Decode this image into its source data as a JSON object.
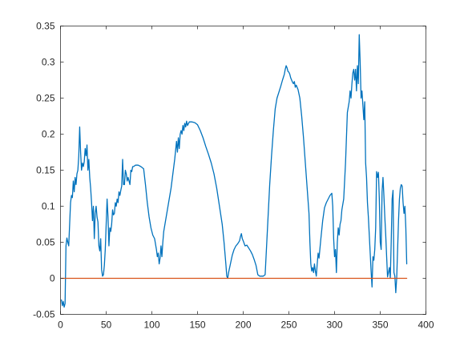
{
  "chart_data": {
    "type": "line",
    "title": "",
    "xlabel": "",
    "ylabel": "",
    "xlim": [
      0,
      400
    ],
    "ylim": [
      -0.05,
      0.35
    ],
    "grid": false,
    "legend": "none",
    "x_ticks": [
      0,
      50,
      100,
      150,
      200,
      250,
      300,
      350,
      400
    ],
    "x_tick_labels": [
      "0",
      "50",
      "100",
      "150",
      "200",
      "250",
      "300",
      "350",
      "400"
    ],
    "y_ticks": [
      -0.05,
      0,
      0.05,
      0.1,
      0.15,
      0.2,
      0.25,
      0.3,
      0.35
    ],
    "y_tick_labels": [
      "-0.05",
      "0",
      "0.05",
      "0.1",
      "0.15",
      "0.2",
      "0.25",
      "0.3",
      "0.35"
    ],
    "series": [
      {
        "color": "#0072BD",
        "points": [
          [
            1,
            -0.03
          ],
          [
            2,
            -0.038
          ],
          [
            3,
            -0.032
          ],
          [
            4,
            -0.04
          ],
          [
            5,
            -0.035
          ],
          [
            6,
            0.045
          ],
          [
            7,
            0.056
          ],
          [
            8,
            0.05
          ],
          [
            9,
            0.045
          ],
          [
            10,
            0.075
          ],
          [
            11,
            0.105
          ],
          [
            12,
            0.115
          ],
          [
            13,
            0.112
          ],
          [
            14,
            0.135
          ],
          [
            15,
            0.12
          ],
          [
            16,
            0.14
          ],
          [
            17,
            0.13
          ],
          [
            18,
            0.145
          ],
          [
            19,
            0.15
          ],
          [
            20,
            0.17
          ],
          [
            21,
            0.21
          ],
          [
            22,
            0.175
          ],
          [
            23,
            0.15
          ],
          [
            24,
            0.16
          ],
          [
            25,
            0.155
          ],
          [
            26,
            0.162
          ],
          [
            27,
            0.18
          ],
          [
            28,
            0.17
          ],
          [
            29,
            0.185
          ],
          [
            30,
            0.15
          ],
          [
            31,
            0.165
          ],
          [
            32,
            0.14
          ],
          [
            33,
            0.125
          ],
          [
            34,
            0.105
          ],
          [
            35,
            0.08
          ],
          [
            36,
            0.1
          ],
          [
            37,
            0.055
          ],
          [
            38,
            0.09
          ],
          [
            39,
            0.1
          ],
          [
            40,
            0.085
          ],
          [
            41,
            0.078
          ],
          [
            42,
            0.045
          ],
          [
            43,
            0.038
          ],
          [
            44,
            0.055
          ],
          [
            45,
            0.012
          ],
          [
            46,
            0.003
          ],
          [
            47,
            0.005
          ],
          [
            48,
            0.018
          ],
          [
            49,
            0.04
          ],
          [
            50,
            0.075
          ],
          [
            51,
            0.11
          ],
          [
            52,
            0.085
          ],
          [
            53,
            0.045
          ],
          [
            54,
            0.07
          ],
          [
            55,
            0.065
          ],
          [
            56,
            0.075
          ],
          [
            57,
            0.095
          ],
          [
            58,
            0.088
          ],
          [
            59,
            0.09
          ],
          [
            60,
            0.105
          ],
          [
            61,
            0.1
          ],
          [
            62,
            0.11
          ],
          [
            63,
            0.105
          ],
          [
            64,
            0.12
          ],
          [
            65,
            0.115
          ],
          [
            66,
            0.122
          ],
          [
            67,
            0.128
          ],
          [
            68,
            0.165
          ],
          [
            69,
            0.13
          ],
          [
            70,
            0.13
          ],
          [
            71,
            0.15
          ],
          [
            72,
            0.145
          ],
          [
            73,
            0.135
          ],
          [
            74,
            0.14
          ],
          [
            75,
            0.135
          ],
          [
            76,
            0.13
          ],
          [
            77,
            0.15
          ],
          [
            78,
            0.148
          ],
          [
            79,
            0.155
          ],
          [
            80,
            0.155
          ],
          [
            82,
            0.157
          ],
          [
            85,
            0.157
          ],
          [
            88,
            0.155
          ],
          [
            91,
            0.152
          ],
          [
            93,
            0.13
          ],
          [
            95,
            0.105
          ],
          [
            97,
            0.085
          ],
          [
            99,
            0.07
          ],
          [
            101,
            0.06
          ],
          [
            103,
            0.055
          ],
          [
            105,
            0.04
          ],
          [
            106,
            0.03
          ],
          [
            107,
            0.035
          ],
          [
            108,
            0.02
          ],
          [
            109,
            0.028
          ],
          [
            110,
            0.045
          ],
          [
            111,
            0.03
          ],
          [
            112,
            0.05
          ],
          [
            113,
            0.065
          ],
          [
            115,
            0.08
          ],
          [
            117,
            0.095
          ],
          [
            119,
            0.11
          ],
          [
            121,
            0.125
          ],
          [
            123,
            0.145
          ],
          [
            125,
            0.165
          ],
          [
            127,
            0.19
          ],
          [
            128,
            0.175
          ],
          [
            129,
            0.195
          ],
          [
            130,
            0.18
          ],
          [
            131,
            0.2
          ],
          [
            132,
            0.205
          ],
          [
            133,
            0.2
          ],
          [
            134,
            0.212
          ],
          [
            135,
            0.205
          ],
          [
            136,
            0.215
          ],
          [
            137,
            0.21
          ],
          [
            138,
            0.218
          ],
          [
            139,
            0.212
          ],
          [
            141,
            0.217
          ],
          [
            144,
            0.217
          ],
          [
            147,
            0.216
          ],
          [
            150,
            0.213
          ],
          [
            153,
            0.205
          ],
          [
            156,
            0.195
          ],
          [
            159,
            0.183
          ],
          [
            162,
            0.172
          ],
          [
            165,
            0.16
          ],
          [
            168,
            0.145
          ],
          [
            171,
            0.125
          ],
          [
            174,
            0.1
          ],
          [
            177,
            0.075
          ],
          [
            179,
            0.05
          ],
          [
            181,
            0.02
          ],
          [
            182,
            0.003
          ],
          [
            183,
            0.0
          ],
          [
            184,
            0.008
          ],
          [
            186,
            0.02
          ],
          [
            188,
            0.032
          ],
          [
            190,
            0.04
          ],
          [
            192,
            0.045
          ],
          [
            194,
            0.048
          ],
          [
            196,
            0.052
          ],
          [
            197,
            0.058
          ],
          [
            198,
            0.062
          ],
          [
            199,
            0.055
          ],
          [
            200,
            0.052
          ],
          [
            202,
            0.045
          ],
          [
            204,
            0.046
          ],
          [
            206,
            0.042
          ],
          [
            208,
            0.038
          ],
          [
            210,
            0.033
          ],
          [
            212,
            0.026
          ],
          [
            214,
            0.018
          ],
          [
            216,
            0.005
          ],
          [
            218,
            0.003
          ],
          [
            220,
            0.003
          ],
          [
            222,
            0.003
          ],
          [
            224,
            0.005
          ],
          [
            225,
            0.03
          ],
          [
            227,
            0.08
          ],
          [
            229,
            0.13
          ],
          [
            231,
            0.17
          ],
          [
            233,
            0.205
          ],
          [
            235,
            0.235
          ],
          [
            237,
            0.25
          ],
          [
            239,
            0.258
          ],
          [
            241,
            0.266
          ],
          [
            243,
            0.275
          ],
          [
            245,
            0.283
          ],
          [
            246,
            0.29
          ],
          [
            247,
            0.295
          ],
          [
            248,
            0.292
          ],
          [
            249,
            0.287
          ],
          [
            250,
            0.286
          ],
          [
            251,
            0.283
          ],
          [
            252,
            0.278
          ],
          [
            253,
            0.275
          ],
          [
            254,
            0.272
          ],
          [
            255,
            0.27
          ],
          [
            256,
            0.273
          ],
          [
            257,
            0.265
          ],
          [
            258,
            0.268
          ],
          [
            260,
            0.262
          ],
          [
            262,
            0.25
          ],
          [
            264,
            0.225
          ],
          [
            266,
            0.195
          ],
          [
            268,
            0.16
          ],
          [
            270,
            0.125
          ],
          [
            272,
            0.09
          ],
          [
            273,
            0.05
          ],
          [
            274,
            0.02
          ],
          [
            275,
            0.01
          ],
          [
            276,
            0.015
          ],
          [
            277,
            0.008
          ],
          [
            278,
            0.02
          ],
          [
            279,
            0.01
          ],
          [
            280,
            0.003
          ],
          [
            281,
            0.02
          ],
          [
            282,
            0.035
          ],
          [
            283,
            0.028
          ],
          [
            285,
            0.055
          ],
          [
            287,
            0.08
          ],
          [
            289,
            0.098
          ],
          [
            291,
            0.105
          ],
          [
            293,
            0.11
          ],
          [
            295,
            0.115
          ],
          [
            297,
            0.118
          ],
          [
            298,
            0.1
          ],
          [
            299,
            0.055
          ],
          [
            300,
            0.03
          ],
          [
            301,
            0.04
          ],
          [
            302,
            0.008
          ],
          [
            303,
            0.05
          ],
          [
            304,
            0.07
          ],
          [
            305,
            0.06
          ],
          [
            306,
            0.075
          ],
          [
            307,
            0.08
          ],
          [
            308,
            0.095
          ],
          [
            310,
            0.11
          ],
          [
            312,
            0.16
          ],
          [
            314,
            0.23
          ],
          [
            316,
            0.245
          ],
          [
            317,
            0.26
          ],
          [
            318,
            0.25
          ],
          [
            319,
            0.27
          ],
          [
            320,
            0.285
          ],
          [
            321,
            0.29
          ],
          [
            322,
            0.275
          ],
          [
            323,
            0.29
          ],
          [
            324,
            0.26
          ],
          [
            325,
            0.295
          ],
          [
            326,
            0.27
          ],
          [
            327,
            0.338
          ],
          [
            328,
            0.3
          ],
          [
            329,
            0.25
          ],
          [
            330,
            0.26
          ],
          [
            331,
            0.24
          ],
          [
            332,
            0.22
          ],
          [
            333,
            0.245
          ],
          [
            334,
            0.16
          ],
          [
            335,
            0.14
          ],
          [
            336,
            0.105
          ],
          [
            337,
            0.085
          ],
          [
            338,
            0.06
          ],
          [
            339,
            0.035
          ],
          [
            340,
            0.01
          ],
          [
            341,
            -0.012
          ],
          [
            342,
            0.03
          ],
          [
            343,
            0.025
          ],
          [
            344,
            0.04
          ],
          [
            345,
            0.07
          ],
          [
            346,
            0.148
          ],
          [
            347,
            0.14
          ],
          [
            348,
            0.147
          ],
          [
            349,
            0.11
          ],
          [
            350,
            0.05
          ],
          [
            351,
            0.04
          ],
          [
            352,
            0.12
          ],
          [
            353,
            0.14
          ],
          [
            354,
            0.115
          ],
          [
            355,
            0.085
          ],
          [
            356,
            0.06
          ],
          [
            357,
            0.03
          ],
          [
            358,
            0.002
          ],
          [
            359,
            0.008
          ],
          [
            360,
            0.015
          ],
          [
            361,
            0.0
          ],
          [
            362,
            0.05
          ],
          [
            363,
            0.11
          ],
          [
            364,
            0.122
          ],
          [
            365,
            0.008
          ],
          [
            366,
            0.003
          ],
          [
            367,
            -0.02
          ],
          [
            368,
            0.0
          ],
          [
            369,
            0.04
          ],
          [
            370,
            0.08
          ],
          [
            371,
            0.11
          ],
          [
            372,
            0.125
          ],
          [
            373,
            0.13
          ],
          [
            374,
            0.128
          ],
          [
            375,
            0.105
          ],
          [
            376,
            0.09
          ],
          [
            377,
            0.1
          ],
          [
            378,
            0.07
          ],
          [
            379,
            0.02
          ]
        ]
      },
      {
        "color": "#D95319",
        "points": [
          [
            1,
            0
          ],
          [
            379,
            0
          ]
        ]
      }
    ]
  }
}
